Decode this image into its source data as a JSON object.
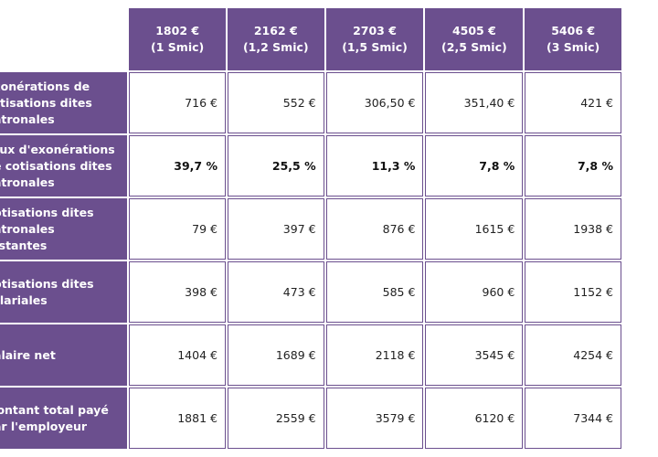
{
  "columns": [
    {
      "amount": "1802 €",
      "sub": "(1 Smic)"
    },
    {
      "amount": "2162 €",
      "sub": "(1,2 Smic)"
    },
    {
      "amount": "2703 €",
      "sub": "(1,5 Smic)"
    },
    {
      "amount": "4505 €",
      "sub": "(2,5 Smic)"
    },
    {
      "amount": "5406 €",
      "sub": "(3 Smic)"
    }
  ],
  "rows": [
    {
      "label": "Exonérations de cotisations dites patronales",
      "bold": false,
      "values": [
        "716 €",
        "552 €",
        "306,50 €",
        "351,40 €",
        "421 €"
      ]
    },
    {
      "label": "Taux d'exonérations de cotisations dites patronales",
      "bold": true,
      "values": [
        "39,7 %",
        "25,5 %",
        "11,3 %",
        "7,8 %",
        "7,8 %"
      ]
    },
    {
      "label": "Cotisations dites patronales restantes",
      "bold": false,
      "values": [
        "79 €",
        "397 €",
        "876 €",
        "1615 €",
        "1938 €"
      ]
    },
    {
      "label": "Cotisations dites salariales",
      "bold": false,
      "values": [
        "398 €",
        "473 €",
        "585 €",
        "960 €",
        "1152 €"
      ]
    },
    {
      "label": "Salaire net",
      "bold": false,
      "values": [
        "1404 €",
        "1689 €",
        "2118 €",
        "3545 €",
        "4254 €"
      ]
    },
    {
      "label": "Montant total payé par l'employeur",
      "bold": false,
      "values": [
        "1881 €",
        "2559 €",
        "3579 €",
        "6120 €",
        "7344 €"
      ]
    }
  ],
  "colors": {
    "header_bg": "#6b4f8e",
    "header_text": "#ffffff",
    "cell_border": "#6b4f8e"
  }
}
